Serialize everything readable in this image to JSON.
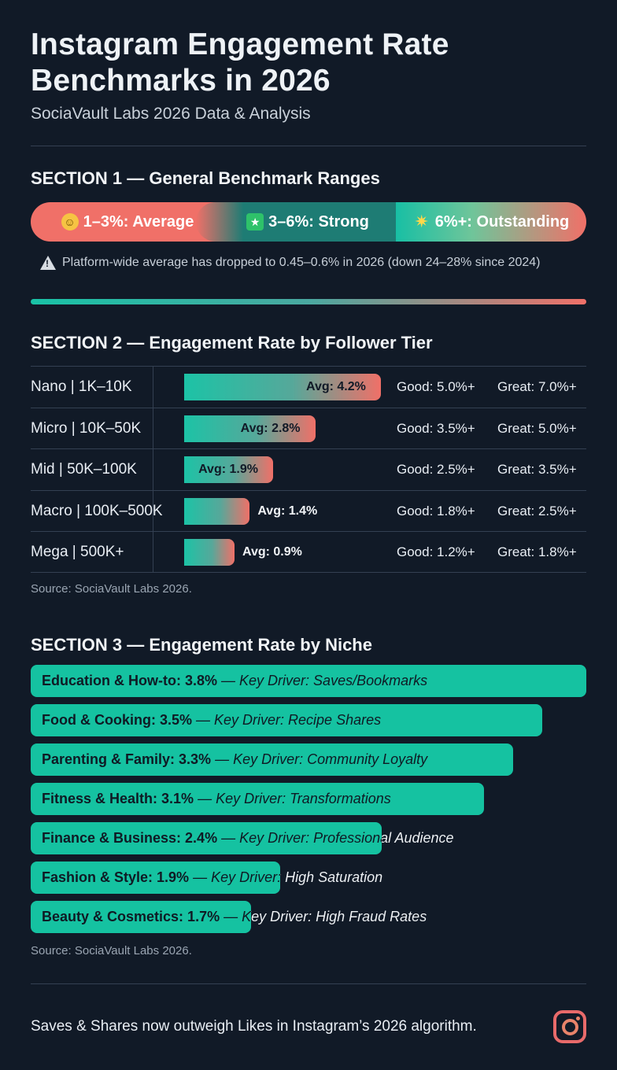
{
  "header": {
    "title": "Instagram Engagement Rate Benchmarks in 2026",
    "subtitle": "SociaVault Labs 2026 Data & Analysis"
  },
  "section1": {
    "heading": "SECTION 1 — General Benchmark Ranges",
    "ranges": [
      {
        "label": "1–3%: Average",
        "icon": "smile-emoji-icon"
      },
      {
        "label": "3–6%: Strong",
        "icon": "star-box-icon"
      },
      {
        "label": "6%+: Outstanding",
        "icon": "glowing-star-icon"
      }
    ],
    "note": "Platform-wide average has dropped to 0.45–0.6% in 2026 (down 24–28% since 2024)"
  },
  "section2": {
    "heading": "SECTION 2 — Engagement Rate by Follower Tier",
    "source": "Source: SociaVault Labs 2026."
  },
  "section3": {
    "heading": "SECTION 3 — Engagement Rate by Niche",
    "source": "Source: SociaVault Labs 2026."
  },
  "footer": {
    "text": "Saves & Shares now outweigh Likes in Instagram’s 2026 algorithm.",
    "icon": "instagram-logo-icon"
  },
  "colors": {
    "background": "#111a27",
    "teal": "#15c2a1",
    "coral": "#f07068"
  },
  "chart_data": [
    {
      "type": "bar",
      "orientation": "horizontal",
      "title": "SECTION 2 — Engagement Rate by Follower Tier",
      "categories": [
        "Nano | 1K–10K",
        "Micro | 10K–50K",
        "Mid | 50K–100K",
        "Macro | 100K–500K",
        "Mega | 500K+"
      ],
      "values": [
        4.2,
        2.8,
        1.9,
        1.4,
        0.9
      ],
      "value_labels": [
        "Avg: 4.2%",
        "Avg: 2.8%",
        "Avg: 1.9%",
        "Avg: 1.4%",
        "Avg: 0.9%"
      ],
      "good": [
        "Good: 5.0%+",
        "Good: 3.5%+",
        "Good: 2.5%+",
        "Good: 1.8%+",
        "Good: 1.2%+"
      ],
      "great": [
        "Great: 7.0%+",
        "Great: 5.0%+",
        "Great: 3.5%+",
        "Great: 2.5%+",
        "Great: 1.8%+"
      ],
      "xlim": [
        0,
        5.6
      ]
    },
    {
      "type": "bar",
      "orientation": "horizontal",
      "title": "SECTION 3 — Engagement Rate by Niche",
      "categories": [
        "Education & How-to",
        "Food & Cooking",
        "Parenting & Family",
        "Fitness & Health",
        "Finance & Business",
        "Fashion & Style",
        "Beauty & Cosmetics"
      ],
      "values": [
        3.8,
        3.5,
        3.3,
        3.1,
        2.4,
        1.9,
        1.7
      ],
      "value_labels": [
        "3.8%",
        "3.5%",
        "3.3%",
        "3.1%",
        "2.4%",
        "1.9%",
        "1.7%"
      ],
      "drivers": [
        "Saves/Bookmarks",
        "Recipe Shares",
        "Community Loyalty",
        "Transformations",
        "Professional Audience",
        "High Saturation",
        "High Fraud Rates"
      ],
      "driver_prefix": "— Key Driver:",
      "xlim": [
        0,
        3.8
      ]
    }
  ]
}
